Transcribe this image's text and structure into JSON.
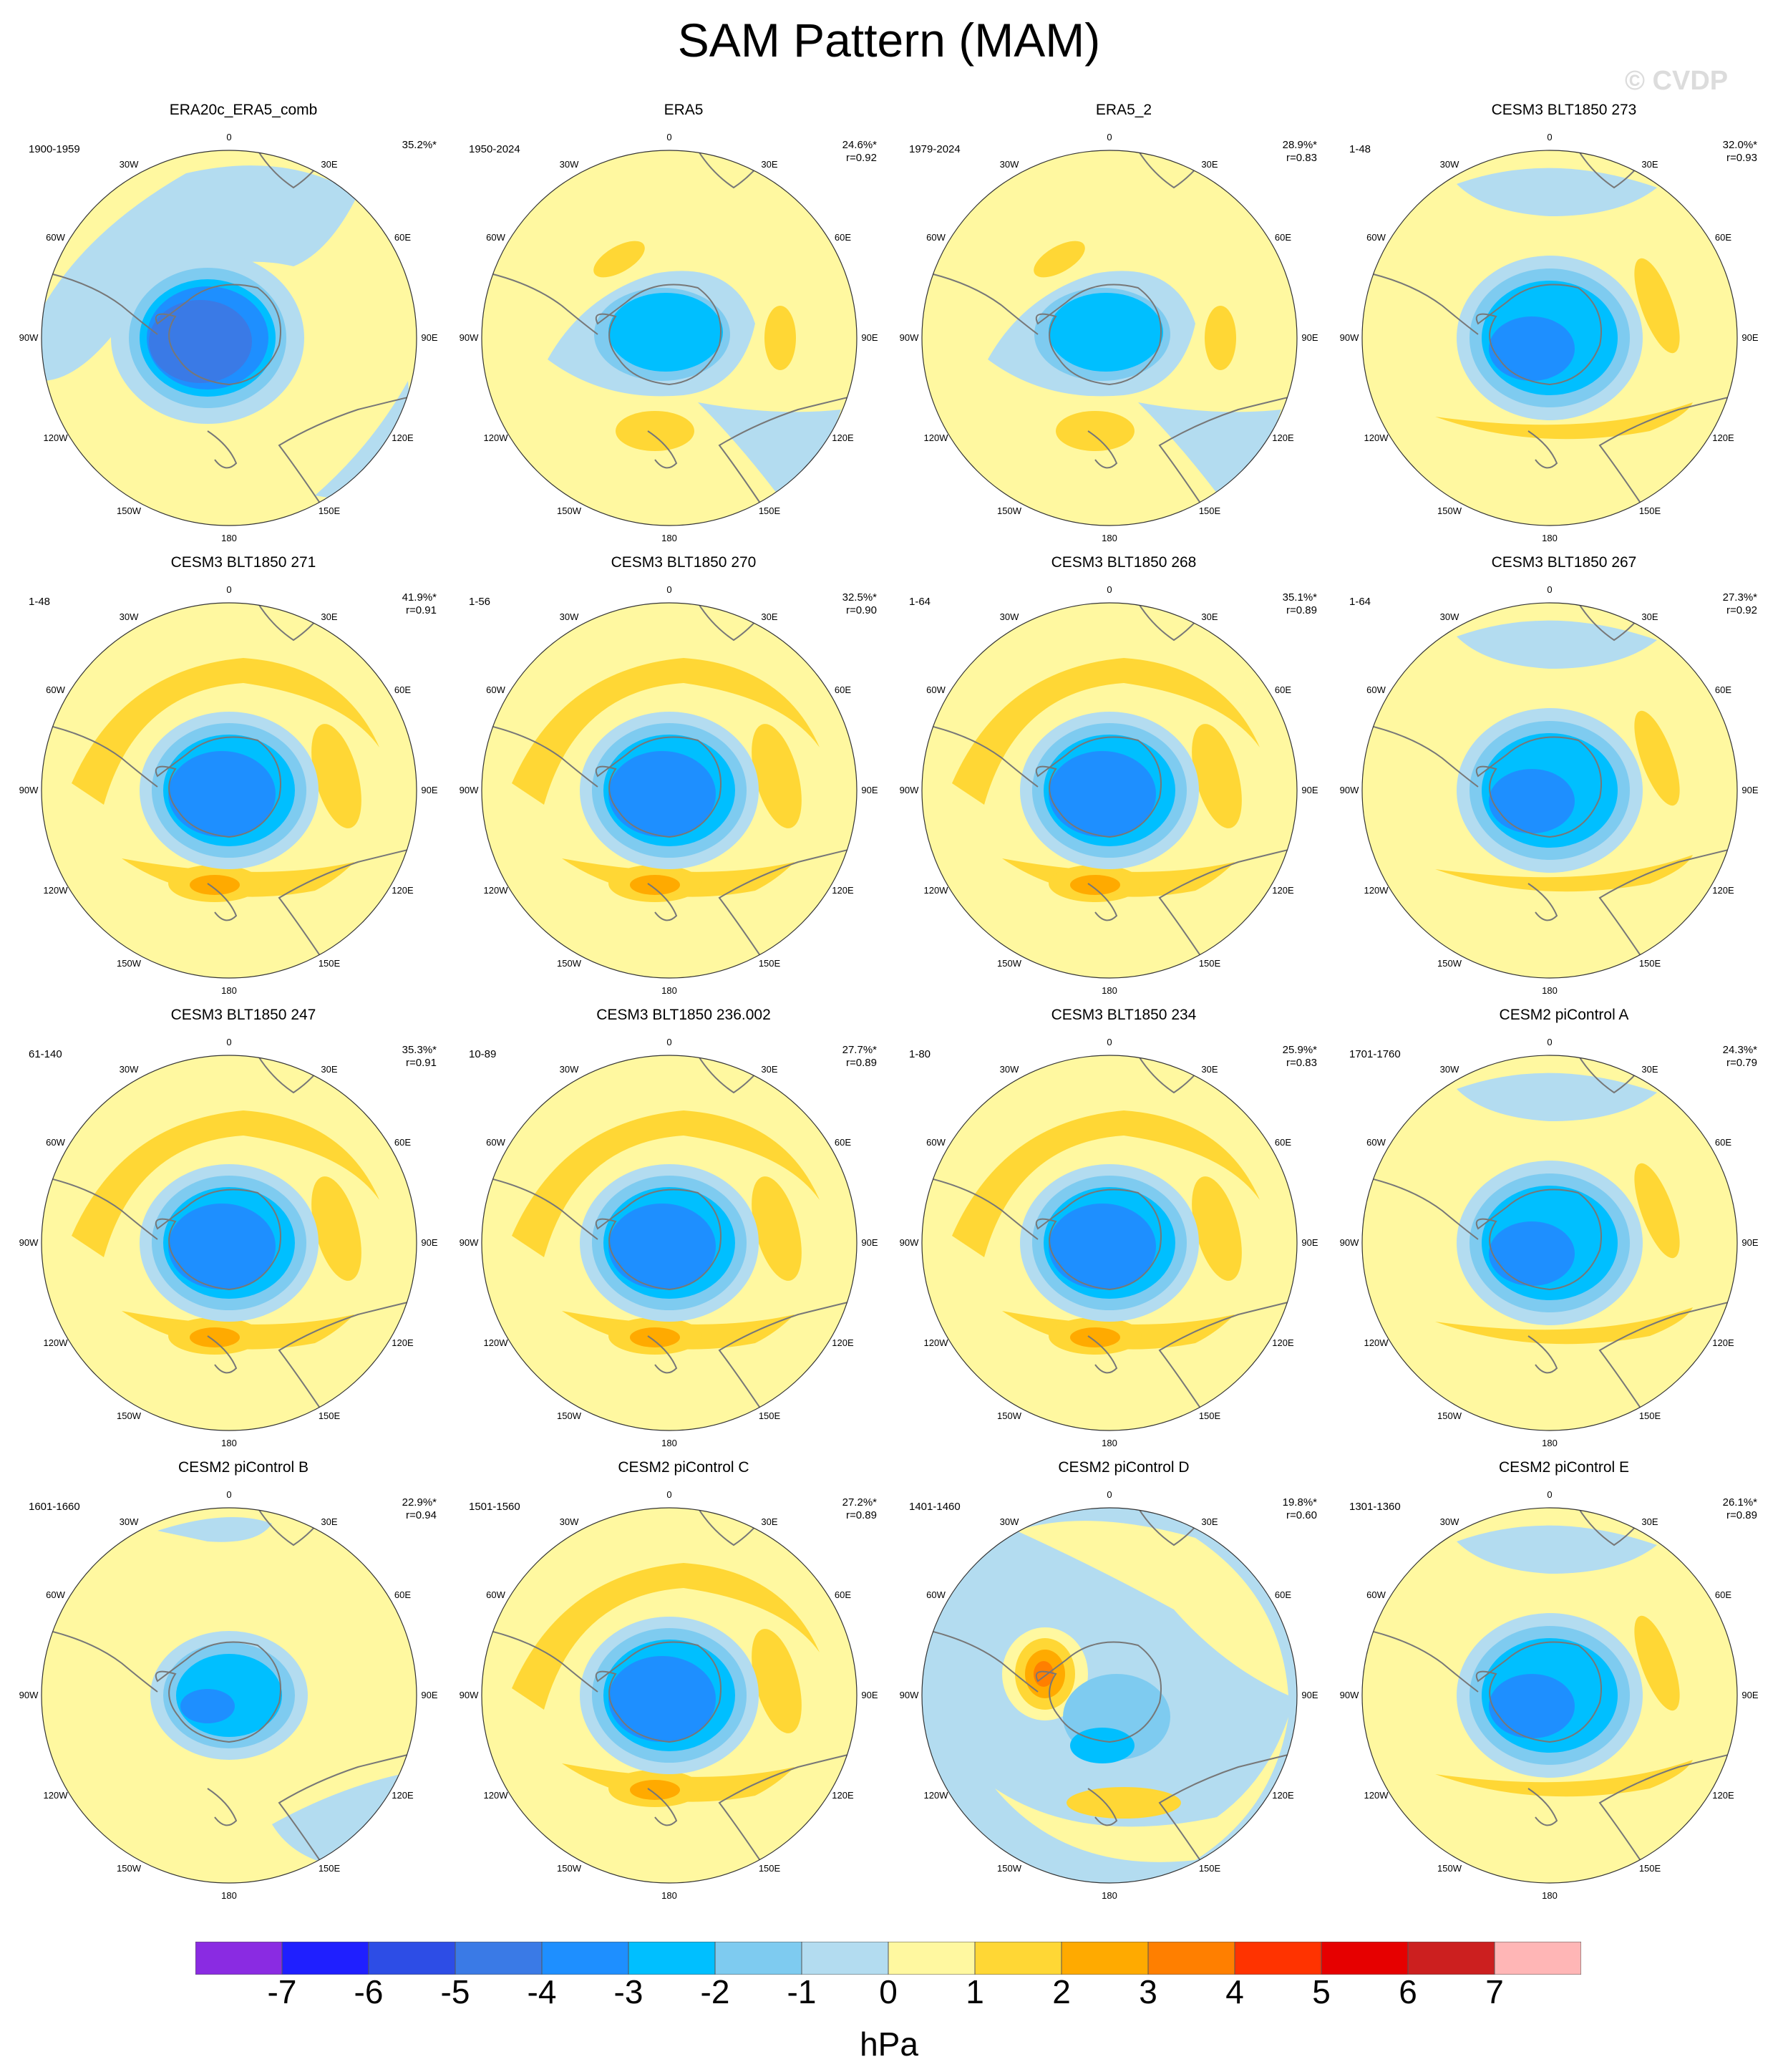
{
  "title": "SAM Pattern (MAM)",
  "watermark": "© CVDP",
  "lon_labels": [
    "0",
    "30E",
    "60E",
    "90E",
    "120E",
    "150E",
    "180",
    "150W",
    "120W",
    "90W",
    "60W",
    "30W"
  ],
  "panels": [
    {
      "title": "ERA20c_ERA5_comb",
      "years": "1900-1959",
      "pct": "35.2%*",
      "r": "",
      "variant": 0
    },
    {
      "title": "ERA5",
      "years": "1950-2024",
      "pct": "24.6%*",
      "r": "r=0.92",
      "variant": 1
    },
    {
      "title": "ERA5_2",
      "years": "1979-2024",
      "pct": "28.9%*",
      "r": "r=0.83",
      "variant": 1
    },
    {
      "title": "CESM3 BLT1850 273",
      "years": "1-48",
      "pct": "32.0%*",
      "r": "r=0.93",
      "variant": 2
    },
    {
      "title": "CESM3 BLT1850 271",
      "years": "1-48",
      "pct": "41.9%*",
      "r": "r=0.91",
      "variant": 3
    },
    {
      "title": "CESM3 BLT1850 270",
      "years": "1-56",
      "pct": "32.5%*",
      "r": "r=0.90",
      "variant": 3
    },
    {
      "title": "CESM3 BLT1850 268",
      "years": "1-64",
      "pct": "35.1%*",
      "r": "r=0.89",
      "variant": 3
    },
    {
      "title": "CESM3 BLT1850 267",
      "years": "1-64",
      "pct": "27.3%*",
      "r": "r=0.92",
      "variant": 2
    },
    {
      "title": "CESM3 BLT1850 247",
      "years": "61-140",
      "pct": "35.3%*",
      "r": "r=0.91",
      "variant": 3
    },
    {
      "title": "CESM3 BLT1850 236.002",
      "years": "10-89",
      "pct": "27.7%*",
      "r": "r=0.89",
      "variant": 3
    },
    {
      "title": "CESM3 BLT1850 234",
      "years": "1-80",
      "pct": "25.9%*",
      "r": "r=0.83",
      "variant": 3
    },
    {
      "title": "CESM2 piControl A",
      "years": "1701-1760",
      "pct": "24.3%*",
      "r": "r=0.79",
      "variant": 2
    },
    {
      "title": "CESM2 piControl B",
      "years": "1601-1660",
      "pct": "22.9%*",
      "r": "r=0.94",
      "variant": 4
    },
    {
      "title": "CESM2 piControl C",
      "years": "1501-1560",
      "pct": "27.2%*",
      "r": "r=0.89",
      "variant": 3
    },
    {
      "title": "CESM2 piControl D",
      "years": "1401-1460",
      "pct": "19.8%*",
      "r": "r=0.60",
      "variant": 5
    },
    {
      "title": "CESM2 piControl E",
      "years": "1301-1360",
      "pct": "26.1%*",
      "r": "r=0.89",
      "variant": 2
    }
  ],
  "colorbar": {
    "colors": [
      "#8a2be2",
      "#1f1fff",
      "#2d4de6",
      "#3a7ae6",
      "#1e8fff",
      "#00bfff",
      "#7ecbf0",
      "#b3dcf0",
      "#fff8a0",
      "#ffd735",
      "#ffaa00",
      "#ff7f00",
      "#ff3300",
      "#e60000",
      "#cc1f1f",
      "#ffb6b6"
    ],
    "ticks": [
      "-7",
      "-6",
      "-5",
      "-4",
      "-3",
      "-2",
      "-1",
      "0",
      "1",
      "2",
      "3",
      "4",
      "5",
      "6",
      "7"
    ],
    "units": "hPa"
  }
}
